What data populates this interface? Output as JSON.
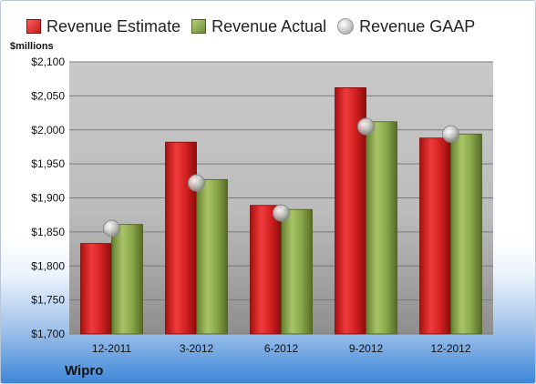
{
  "legend": {
    "estimate": "Revenue Estimate",
    "actual": "Revenue Actual",
    "gaap": "Revenue GAAP"
  },
  "unit_label": "$millions",
  "company": "Wipro",
  "colors": {
    "estimate": "#d42a2a",
    "actual": "#8caa4e",
    "gaap": "#c8c8c8"
  },
  "chart_data": {
    "type": "bar",
    "categories": [
      "12-2011",
      "3-2012",
      "6-2012",
      "9-2012",
      "12-2012"
    ],
    "series": [
      {
        "name": "Revenue Estimate",
        "values": [
          1833,
          1982,
          1889,
          2062,
          1988
        ]
      },
      {
        "name": "Revenue Actual",
        "values": [
          1861,
          1927,
          1883,
          2012,
          1994
        ]
      },
      {
        "name": "Revenue GAAP",
        "values": [
          1855,
          1922,
          1878,
          2005,
          1994
        ]
      }
    ],
    "ylim": [
      1700,
      2100
    ],
    "yticks": [
      1700,
      1750,
      1800,
      1850,
      1900,
      1950,
      2000,
      2050,
      2100
    ],
    "ytick_labels": [
      "$1,700",
      "$1,750",
      "$1,800",
      "$1,850",
      "$1,900",
      "$1,950",
      "$2,000",
      "$2,050",
      "$2,100"
    ],
    "ylabel": "$millions",
    "grid": true,
    "legend_position": "top"
  }
}
